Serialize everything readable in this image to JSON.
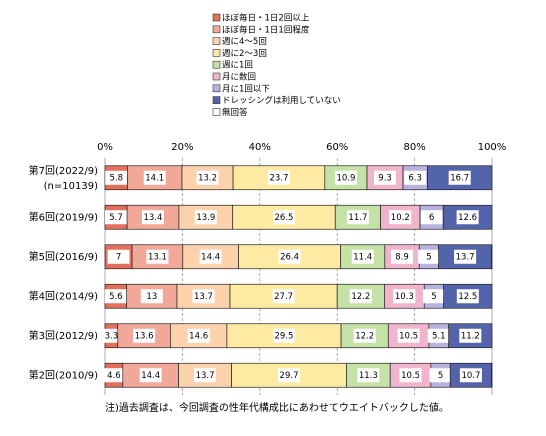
{
  "chart_data": {
    "type": "stacked-bar-horizontal",
    "categories": [
      "第7回(2022/9)",
      "第6回(2019/9)",
      "第5回(2016/9)",
      "第4回(2014/9)",
      "第3回(2012/9)",
      "第2回(2010/9)"
    ],
    "sample_size": "(n=10139)",
    "series": [
      {
        "name": "ほぼ毎日・1日2回以上",
        "color": "#e4705c",
        "values": [
          5.8,
          5.7,
          7.0,
          5.6,
          3.3,
          4.6
        ]
      },
      {
        "name": "ほぼ毎日・1日1回程度",
        "color": "#f2a898",
        "values": [
          14.1,
          13.4,
          13.1,
          13.0,
          13.6,
          14.4
        ]
      },
      {
        "name": "週に4～5回",
        "color": "#fcd2ac",
        "values": [
          13.2,
          13.9,
          14.4,
          13.7,
          14.6,
          13.7
        ]
      },
      {
        "name": "週に2～3回",
        "color": "#feeaa2",
        "values": [
          23.7,
          26.5,
          26.4,
          27.7,
          29.5,
          29.7
        ]
      },
      {
        "name": "週に1回",
        "color": "#c4e2a6",
        "values": [
          10.9,
          11.7,
          11.4,
          12.2,
          12.2,
          11.3
        ]
      },
      {
        "name": "月に数回",
        "color": "#f0b4cc",
        "values": [
          9.3,
          10.2,
          8.9,
          10.3,
          10.5,
          10.5
        ]
      },
      {
        "name": "月に1回以下",
        "color": "#b8b2e0",
        "values": [
          6.3,
          6.0,
          5.0,
          5.0,
          5.1,
          5.0
        ]
      },
      {
        "name": "ドレッシングは利用していない",
        "color": "#5464aa",
        "values": [
          16.7,
          12.6,
          13.7,
          12.5,
          11.2,
          10.7
        ]
      },
      {
        "name": "無回答",
        "color": "#ffffff",
        "values": [
          0,
          0,
          0.1,
          0,
          0,
          0.1
        ]
      }
    ],
    "xlim": [
      0,
      100
    ],
    "xticks": [
      {
        "value": 0,
        "label": "0%"
      },
      {
        "value": 20,
        "label": "20%"
      },
      {
        "value": 40,
        "label": "40%"
      },
      {
        "value": 60,
        "label": "60%"
      },
      {
        "value": 80,
        "label": "80%"
      },
      {
        "value": 100,
        "label": "100%"
      }
    ],
    "grid": true,
    "note": "注)過去調査は、今回調査の性年代構成比にあわせてウエイトバックした値。"
  }
}
